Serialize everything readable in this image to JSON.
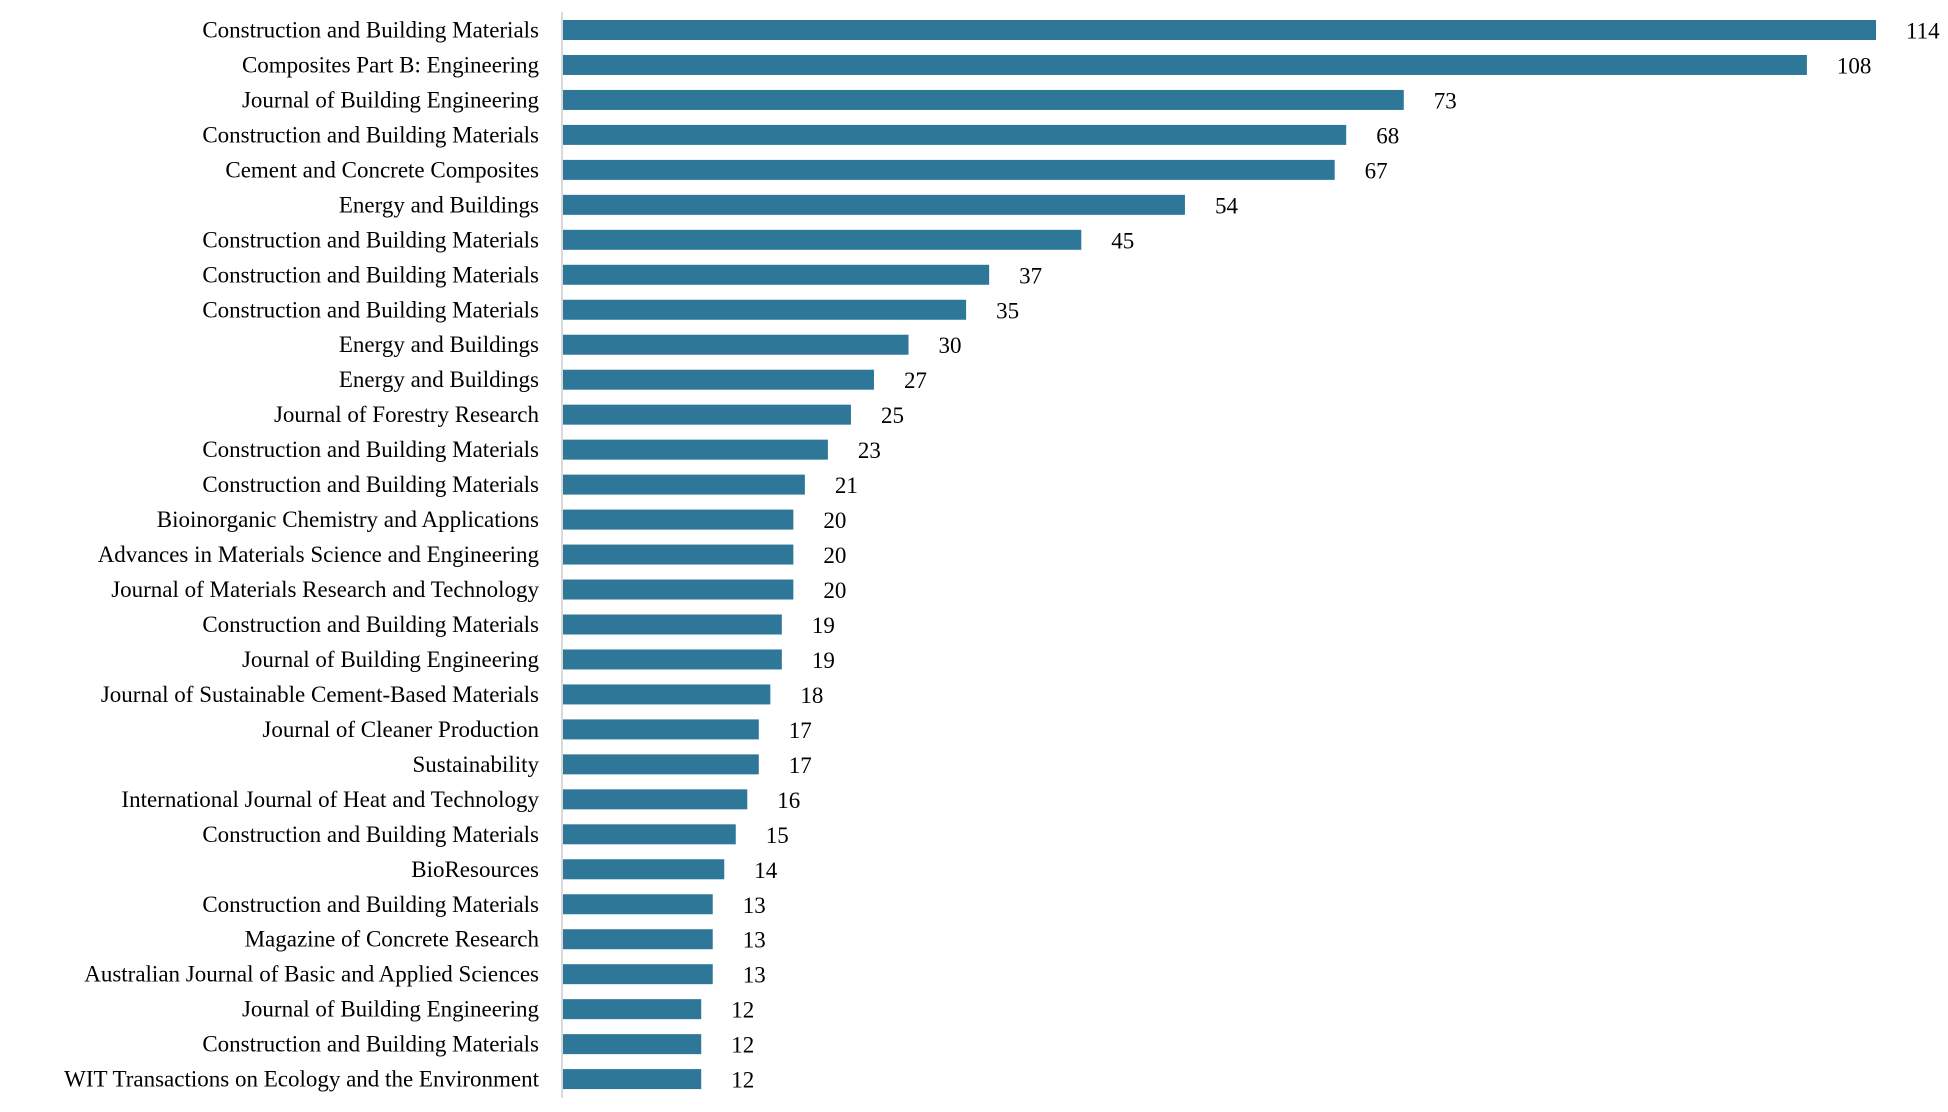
{
  "chart_data": {
    "type": "bar",
    "orientation": "horizontal",
    "grid": false,
    "legend": "none",
    "bar_color": "#2e7799",
    "xlim": [
      0,
      114
    ],
    "categories": [
      "Construction and Building Materials",
      "Composites Part B: Engineering",
      "Journal of Building Engineering",
      "Construction and Building Materials",
      "Cement and Concrete Composites",
      "Energy and Buildings",
      "Construction and Building Materials",
      "Construction and Building Materials",
      "Construction and Building Materials",
      "Energy and Buildings",
      "Energy and Buildings",
      "Journal of Forestry Research",
      "Construction and Building Materials",
      "Construction and Building Materials",
      "Bioinorganic Chemistry and Applications",
      "Advances in Materials Science and Engineering",
      "Journal of Materials Research and Technology",
      "Construction and Building Materials",
      "Journal of Building Engineering",
      "Journal of Sustainable Cement-Based Materials",
      "Journal of Cleaner Production",
      "Sustainability",
      "International Journal of Heat and Technology",
      "Construction and Building Materials",
      "BioResources",
      "Construction and Building Materials",
      "Magazine of Concrete Research",
      "Australian Journal of Basic and Applied Sciences",
      "Journal of Building Engineering",
      "Construction and Building Materials",
      "WIT Transactions on Ecology and the Environment"
    ],
    "values": [
      114,
      108,
      73,
      68,
      67,
      54,
      45,
      37,
      35,
      30,
      27,
      25,
      23,
      21,
      20,
      20,
      20,
      19,
      19,
      18,
      17,
      17,
      16,
      15,
      14,
      13,
      13,
      13,
      12,
      12,
      12
    ]
  }
}
